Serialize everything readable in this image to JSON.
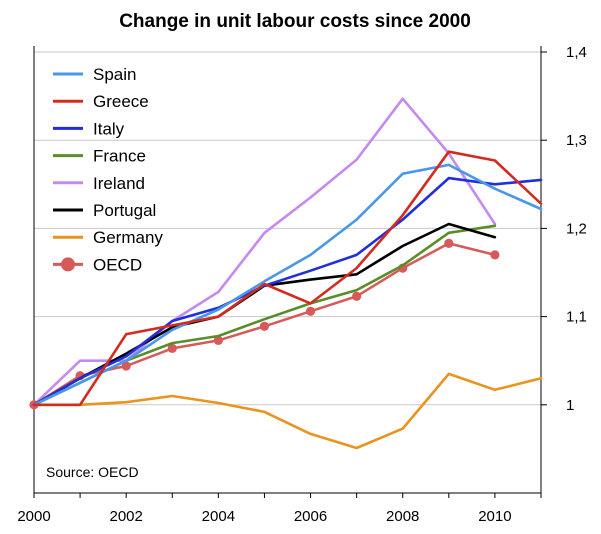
{
  "chart_data": {
    "type": "line",
    "title": "Change in unit labour costs since 2000",
    "xlabel": "",
    "ylabel": "",
    "x": [
      2000,
      2001,
      2002,
      2003,
      2004,
      2005,
      2006,
      2007,
      2008,
      2009,
      2010,
      2011
    ],
    "xlim": [
      2000,
      2011
    ],
    "ylim": [
      0.9,
      1.4
    ],
    "x_ticks": [
      2000,
      2002,
      2004,
      2006,
      2008,
      2010
    ],
    "x_tick_labels": [
      "2000",
      "2002",
      "2004",
      "2006",
      "2008",
      "2010"
    ],
    "y_ticks": [
      1.0,
      1.1,
      1.2,
      1.3,
      1.4
    ],
    "y_tick_labels": [
      "1",
      "1,1",
      "1,2",
      "1,3",
      "1,4"
    ],
    "grid": "horizontal",
    "legend_position": "top-left",
    "source": "Source: OECD",
    "series": [
      {
        "name": "Spain",
        "color": "#4a97e8",
        "marker": "none",
        "x": [
          2000,
          2001,
          2002,
          2003,
          2004,
          2005,
          2006,
          2007,
          2008,
          2009,
          2010,
          2011
        ],
        "values": [
          1.0,
          1.025,
          1.05,
          1.085,
          1.108,
          1.14,
          1.17,
          1.21,
          1.262,
          1.272,
          1.245,
          1.222
        ]
      },
      {
        "name": "Greece",
        "color": "#d42b1e",
        "marker": "none",
        "x": [
          2000,
          2001,
          2002,
          2003,
          2004,
          2005,
          2006,
          2007,
          2008,
          2009,
          2010,
          2011
        ],
        "values": [
          1.0,
          1.0,
          1.08,
          1.09,
          1.1,
          1.137,
          1.115,
          1.155,
          1.215,
          1.287,
          1.277,
          1.228
        ]
      },
      {
        "name": "Italy",
        "color": "#1f2fdb",
        "marker": "none",
        "x": [
          2000,
          2001,
          2002,
          2003,
          2004,
          2005,
          2006,
          2007,
          2008,
          2009,
          2010,
          2011
        ],
        "values": [
          1.0,
          1.03,
          1.055,
          1.095,
          1.11,
          1.135,
          1.152,
          1.17,
          1.21,
          1.257,
          1.25,
          1.255
        ]
      },
      {
        "name": "France",
        "color": "#5b8c2a",
        "marker": "none",
        "x": [
          2000,
          2001,
          2002,
          2003,
          2004,
          2005,
          2006,
          2007,
          2008,
          2009,
          2010
        ],
        "values": [
          1.0,
          1.025,
          1.05,
          1.07,
          1.078,
          1.097,
          1.115,
          1.13,
          1.158,
          1.195,
          1.203
        ]
      },
      {
        "name": "Ireland",
        "color": "#c58af0",
        "marker": "none",
        "x": [
          2000,
          2001,
          2002,
          2003,
          2004,
          2005,
          2006,
          2007,
          2008,
          2009,
          2010
        ],
        "values": [
          1.0,
          1.05,
          1.05,
          1.095,
          1.128,
          1.195,
          1.235,
          1.278,
          1.347,
          1.285,
          1.205
        ]
      },
      {
        "name": "Portugal",
        "color": "#000000",
        "marker": "none",
        "x": [
          2000,
          2001,
          2002,
          2003,
          2004,
          2005,
          2006,
          2007,
          2008,
          2009,
          2010
        ],
        "values": [
          1.0,
          1.03,
          1.058,
          1.088,
          1.1,
          1.135,
          1.142,
          1.148,
          1.18,
          1.205,
          1.19
        ]
      },
      {
        "name": "Germany",
        "color": "#e8941e",
        "marker": "none",
        "x": [
          2000,
          2001,
          2002,
          2003,
          2004,
          2005,
          2006,
          2007,
          2008,
          2009,
          2010,
          2011
        ],
        "values": [
          1.0,
          1.0,
          1.003,
          1.01,
          1.002,
          0.992,
          0.967,
          0.951,
          0.973,
          1.035,
          1.017,
          1.03
        ]
      },
      {
        "name": "OECD",
        "color": "#d75a5a",
        "marker": "circle",
        "x": [
          2000,
          2001,
          2002,
          2003,
          2004,
          2005,
          2006,
          2007,
          2008,
          2009,
          2010
        ],
        "values": [
          1.0,
          1.033,
          1.044,
          1.064,
          1.073,
          1.089,
          1.106,
          1.123,
          1.155,
          1.183,
          1.17
        ]
      }
    ]
  }
}
